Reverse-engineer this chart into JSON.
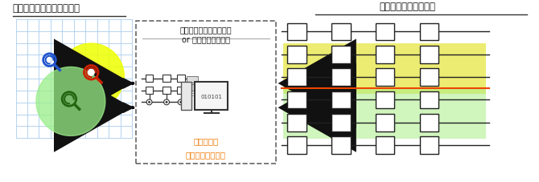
{
  "title_left": "巨大量子系のダイナミクス",
  "title_right": "設計する変分量子回路",
  "box_label_top": "小規模量子コンピュータ",
  "box_label_mid": "or 古典コンピュータ",
  "box_label_bottom": "量子回路の\n設計のための計算",
  "monitor_text": "010101",
  "bg_color": "#ffffff",
  "grid_color": "#aaccee",
  "circle_yellow_color": "#eeff00",
  "circle_yellow_alpha": 0.85,
  "circle_green_color": "#99ee88",
  "circle_green_alpha": 0.75,
  "arrow_color": "#111111",
  "dashed_box_color": "#666666",
  "orange_text_color": "#ee7700",
  "highlight_yellow": "#dddd00",
  "highlight_green": "#aaee88",
  "highlight_yellow_alpha": 0.55,
  "highlight_green_alpha": 0.55,
  "gate_line_color": "#222222",
  "orange_line_color": "#ee4400",
  "blue_color": "#2255cc",
  "red_color": "#cc2200",
  "green_color": "#226611"
}
